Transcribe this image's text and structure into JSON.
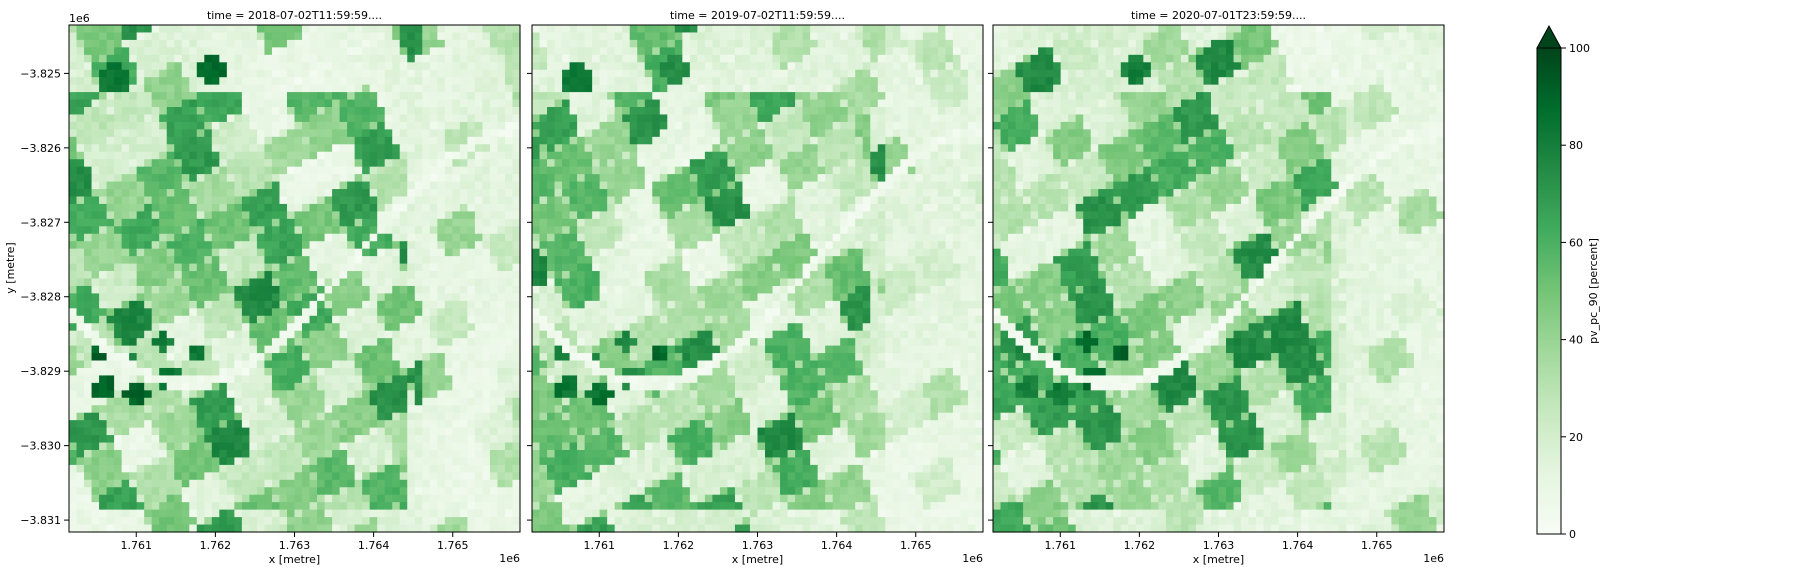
{
  "chart_data": {
    "type": "heatmap",
    "colormap": "Greens",
    "colormap_colors": [
      "#f7fcf5",
      "#e5f5e0",
      "#c7e9c0",
      "#a1d99b",
      "#74c476",
      "#41ab5d",
      "#238b45",
      "#006d2c",
      "#00441b"
    ],
    "shared_y": true,
    "panels": [
      {
        "title": "time = 2018-07-02T11:59:59...."
      },
      {
        "title": "time = 2019-07-02T11:59:59...."
      },
      {
        "title": "time = 2020-07-01T23:59:59...."
      }
    ],
    "x_axis": {
      "label": "x [metre]",
      "offset_label": "1e6",
      "ticks": [
        1.761,
        1.762,
        1.763,
        1.764,
        1.765
      ],
      "tick_labels": [
        "1.761",
        "1.762",
        "1.763",
        "1.764",
        "1.765"
      ],
      "range": [
        1.76015,
        1.76585
      ]
    },
    "y_axis": {
      "label": "y [metre]",
      "offset_label": "1e6",
      "ticks": [
        -3.825,
        -3.826,
        -3.827,
        -3.828,
        -3.829,
        -3.83,
        -3.831
      ],
      "tick_labels": [
        "−3.825",
        "−3.826",
        "−3.827",
        "−3.828",
        "−3.829",
        "−3.830",
        "−3.831"
      ],
      "range": [
        -3.82435,
        -3.83116
      ]
    },
    "colorbar": {
      "label": "pv_pc_90 [percent]",
      "range": [
        0,
        100
      ],
      "ticks": [
        0,
        20,
        40,
        60,
        80,
        100
      ],
      "tick_labels": [
        "0",
        "20",
        "40",
        "60",
        "80",
        "100"
      ],
      "extend": "max"
    }
  }
}
